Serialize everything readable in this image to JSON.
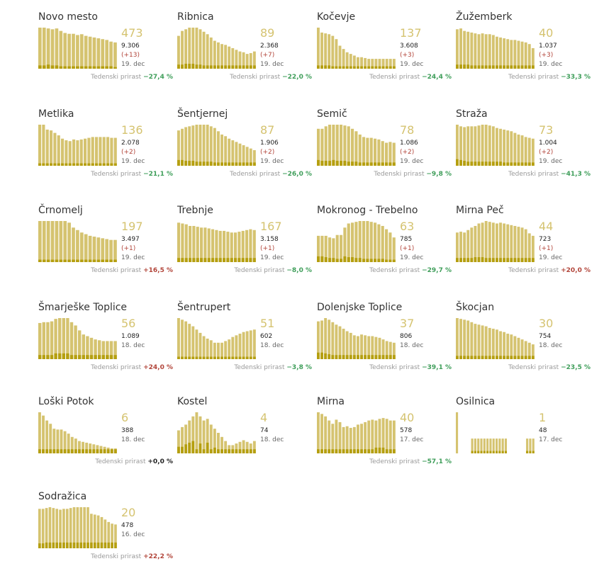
{
  "colors": {
    "bar_active": "#d5c370",
    "bar_new": "#b59f10",
    "number": "#d5c370",
    "growth_negative": "#3f9e5a",
    "growth_positive": "#b2453a"
  },
  "weekly_label": "Tedenski prirast",
  "chart_data": [
    {
      "type": "bar",
      "name": "Novo mesto",
      "active": 473,
      "total": "9.306",
      "new": "(+13)",
      "date": "19. dec",
      "weekly_growth": "−27,4 %",
      "trend": "neg",
      "values": [
        100,
        100,
        98,
        96,
        98,
        92,
        87,
        85,
        85,
        82,
        84,
        80,
        78,
        76,
        74,
        72,
        70,
        66,
        64
      ],
      "new_values": [
        8,
        8,
        10,
        8,
        8,
        6,
        6,
        6,
        6,
        6,
        6,
        6,
        6,
        6,
        6,
        6,
        6,
        6,
        4
      ]
    },
    {
      "type": "bar",
      "name": "Ribnica",
      "active": 89,
      "total": "2.368",
      "new": "(+7)",
      "date": "19. dec",
      "weekly_growth": "−22,0 %",
      "trend": "neg",
      "values": [
        80,
        92,
        96,
        100,
        100,
        100,
        96,
        90,
        84,
        76,
        68,
        64,
        60,
        58,
        54,
        50,
        46,
        42,
        40,
        36,
        38,
        42
      ],
      "new_values": [
        10,
        10,
        12,
        12,
        12,
        10,
        10,
        8,
        8,
        8,
        8,
        8,
        8,
        8,
        8,
        8,
        8,
        8,
        8,
        8,
        8,
        8
      ]
    },
    {
      "type": "bar",
      "name": "Kočevje",
      "active": 137,
      "total": "3.608",
      "new": "(+3)",
      "date": "19. dec",
      "weekly_growth": "−24,4 %",
      "trend": "neg",
      "values": [
        100,
        88,
        86,
        84,
        80,
        72,
        56,
        48,
        40,
        36,
        32,
        28,
        28,
        26,
        24,
        24,
        24,
        24,
        24,
        24,
        24,
        24
      ],
      "new_values": [
        8,
        8,
        8,
        8,
        6,
        6,
        6,
        6,
        6,
        6,
        6,
        6,
        6,
        6,
        6,
        6,
        6,
        6,
        6,
        6,
        6,
        6
      ]
    },
    {
      "type": "bar",
      "name": "Žužemberk",
      "active": 40,
      "total": "1.037",
      "new": "(+3)",
      "date": "19. dec",
      "weekly_growth": "−33,3 %",
      "trend": "neg",
      "values": [
        96,
        98,
        92,
        90,
        88,
        86,
        84,
        86,
        84,
        84,
        82,
        78,
        76,
        74,
        72,
        70,
        70,
        68,
        66,
        64,
        60,
        50
      ],
      "new_values": [
        10,
        10,
        10,
        10,
        8,
        8,
        8,
        8,
        8,
        8,
        8,
        8,
        8,
        8,
        8,
        8,
        8,
        8,
        8,
        8,
        8,
        8
      ]
    },
    {
      "type": "bar",
      "name": "Metlika",
      "active": 136,
      "total": "2.078",
      "new": "(+2)",
      "date": "19. dec",
      "weekly_growth": "−21,1 %",
      "trend": "neg",
      "values": [
        100,
        100,
        88,
        86,
        80,
        74,
        66,
        62,
        60,
        64,
        62,
        64,
        66,
        68,
        70,
        70,
        70,
        70,
        70,
        68,
        68
      ],
      "new_values": [
        6,
        6,
        6,
        6,
        6,
        6,
        6,
        6,
        6,
        6,
        6,
        6,
        6,
        6,
        6,
        6,
        6,
        6,
        6,
        6,
        6
      ]
    },
    {
      "type": "bar",
      "name": "Šentjernej",
      "active": 87,
      "total": "1.906",
      "new": "(+2)",
      "date": "19. dec",
      "weekly_growth": "−26,0 %",
      "trend": "neg",
      "values": [
        86,
        90,
        94,
        96,
        98,
        100,
        100,
        100,
        100,
        96,
        92,
        84,
        76,
        72,
        66,
        62,
        58,
        54,
        50,
        46,
        42,
        38
      ],
      "new_values": [
        14,
        14,
        12,
        12,
        12,
        10,
        10,
        10,
        10,
        10,
        8,
        8,
        8,
        8,
        8,
        8,
        8,
        8,
        8,
        8,
        8,
        8
      ]
    },
    {
      "type": "bar",
      "name": "Semič",
      "active": 78,
      "total": "1.086",
      "new": "(+2)",
      "date": "19. dec",
      "weekly_growth": "−9,8 %",
      "trend": "neg",
      "values": [
        90,
        90,
        96,
        100,
        100,
        100,
        100,
        98,
        96,
        90,
        84,
        76,
        70,
        68,
        68,
        66,
        64,
        60,
        56,
        58,
        56
      ],
      "new_values": [
        14,
        12,
        12,
        12,
        14,
        12,
        12,
        12,
        10,
        10,
        10,
        8,
        8,
        8,
        8,
        8,
        8,
        8,
        8,
        8,
        8
      ]
    },
    {
      "type": "bar",
      "name": "Straža",
      "active": 73,
      "total": "1.004",
      "new": "(+2)",
      "date": "19. dec",
      "weekly_growth": "−41,3 %",
      "trend": "neg",
      "values": [
        100,
        96,
        94,
        96,
        96,
        96,
        98,
        100,
        100,
        98,
        96,
        92,
        90,
        88,
        86,
        84,
        80,
        76,
        74,
        70,
        68,
        66
      ],
      "new_values": [
        16,
        14,
        12,
        10,
        10,
        10,
        10,
        10,
        10,
        10,
        10,
        10,
        10,
        8,
        8,
        8,
        8,
        8,
        8,
        8,
        8,
        8
      ]
    },
    {
      "type": "bar",
      "name": "Črnomelj",
      "active": 197,
      "total": "3.497",
      "new": "(+1)",
      "date": "19. dec",
      "weekly_growth": "+16,5 %",
      "trend": "pos",
      "values": [
        100,
        100,
        100,
        100,
        100,
        100,
        100,
        96,
        84,
        78,
        72,
        68,
        64,
        62,
        60,
        58,
        56,
        54,
        54
      ],
      "new_values": [
        6,
        6,
        6,
        6,
        6,
        6,
        6,
        6,
        6,
        6,
        6,
        6,
        6,
        6,
        6,
        6,
        6,
        6,
        6
      ]
    },
    {
      "type": "bar",
      "name": "Trebnje",
      "active": 167,
      "total": "3.158",
      "new": "(+1)",
      "date": "19. dec",
      "weekly_growth": "−8,0 %",
      "trend": "neg",
      "values": [
        96,
        94,
        92,
        88,
        88,
        86,
        84,
        84,
        82,
        80,
        78,
        76,
        76,
        74,
        72,
        72,
        74,
        76,
        78,
        80,
        78
      ],
      "new_values": [
        10,
        10,
        10,
        10,
        10,
        10,
        10,
        10,
        10,
        10,
        10,
        10,
        10,
        10,
        10,
        10,
        10,
        10,
        10,
        10,
        10
      ]
    },
    {
      "type": "bar",
      "name": "Mokronog - Trebelno",
      "active": 63,
      "total": "785",
      "new": "(+1)",
      "date": "19. dec",
      "weekly_growth": "−29,7 %",
      "trend": "neg",
      "values": [
        64,
        64,
        64,
        60,
        58,
        66,
        66,
        84,
        94,
        96,
        98,
        100,
        100,
        100,
        98,
        96,
        92,
        88,
        80,
        72,
        60
      ],
      "new_values": [
        14,
        14,
        12,
        10,
        10,
        8,
        8,
        14,
        12,
        12,
        10,
        10,
        8,
        8,
        8,
        8,
        8,
        8,
        6,
        6,
        6
      ]
    },
    {
      "type": "bar",
      "name": "Mirna Peč",
      "active": 44,
      "total": "723",
      "new": "(+1)",
      "date": "19. dec",
      "weekly_growth": "+20,0 %",
      "trend": "pos",
      "values": [
        72,
        74,
        72,
        78,
        84,
        88,
        94,
        96,
        100,
        98,
        96,
        94,
        96,
        94,
        92,
        90,
        88,
        86,
        84,
        80,
        70,
        64
      ],
      "new_values": [
        10,
        10,
        10,
        10,
        10,
        12,
        12,
        12,
        10,
        10,
        10,
        10,
        10,
        10,
        10,
        10,
        10,
        10,
        10,
        10,
        10,
        10
      ]
    },
    {
      "type": "bar",
      "name": "Šmarješke Toplice",
      "active": 56,
      "total": "1.089",
      "new": "",
      "date": "18. dec",
      "weekly_growth": "+24,0 %",
      "trend": "pos",
      "values": [
        88,
        90,
        90,
        92,
        98,
        100,
        100,
        100,
        90,
        82,
        70,
        60,
        56,
        52,
        48,
        46,
        44,
        44,
        44,
        44
      ],
      "new_values": [
        10,
        10,
        10,
        10,
        14,
        14,
        14,
        14,
        10,
        10,
        10,
        10,
        10,
        10,
        10,
        10,
        10,
        10,
        10,
        10
      ]
    },
    {
      "type": "bar",
      "name": "Šentrupert",
      "active": 51,
      "total": "602",
      "new": "",
      "date": "18. dec",
      "weekly_growth": "−3,8 %",
      "trend": "neg",
      "values": [
        100,
        96,
        92,
        86,
        80,
        72,
        64,
        56,
        50,
        46,
        40,
        40,
        40,
        44,
        48,
        54,
        58,
        62,
        66,
        68,
        70,
        72
      ],
      "new_values": [
        6,
        6,
        6,
        6,
        6,
        6,
        6,
        6,
        6,
        6,
        6,
        6,
        6,
        6,
        6,
        6,
        6,
        6,
        6,
        6,
        6,
        6
      ]
    },
    {
      "type": "bar",
      "name": "Dolenjske Toplice",
      "active": 37,
      "total": "806",
      "new": "",
      "date": "18. dec",
      "weekly_growth": "−39,1 %",
      "trend": "neg",
      "values": [
        92,
        94,
        100,
        96,
        90,
        84,
        80,
        74,
        68,
        64,
        58,
        56,
        60,
        58,
        56,
        56,
        54,
        52,
        48,
        44,
        42,
        40
      ],
      "new_values": [
        16,
        16,
        14,
        12,
        10,
        10,
        10,
        10,
        10,
        10,
        10,
        10,
        10,
        10,
        10,
        10,
        10,
        10,
        10,
        10,
        10,
        10
      ]
    },
    {
      "type": "bar",
      "name": "Škocjan",
      "active": 30,
      "total": "754",
      "new": "",
      "date": "18. dec",
      "weekly_growth": "−23,5 %",
      "trend": "neg",
      "values": [
        100,
        98,
        96,
        94,
        90,
        86,
        84,
        82,
        80,
        76,
        74,
        72,
        68,
        66,
        62,
        60,
        56,
        52,
        48,
        44,
        40,
        36
      ],
      "new_values": [
        8,
        8,
        8,
        8,
        8,
        8,
        8,
        8,
        8,
        8,
        8,
        8,
        8,
        8,
        8,
        8,
        8,
        8,
        8,
        8,
        8,
        8
      ]
    },
    {
      "type": "bar",
      "name": "Loški Potok",
      "active": 6,
      "total": "388",
      "new": "",
      "date": "18. dec",
      "weekly_growth": "+0,0 %",
      "trend": "zero",
      "values": [
        100,
        92,
        80,
        72,
        60,
        58,
        58,
        54,
        48,
        40,
        36,
        30,
        28,
        26,
        24,
        22,
        20,
        18,
        16,
        14,
        12,
        12
      ],
      "new_values": [
        10,
        10,
        10,
        10,
        10,
        10,
        10,
        10,
        10,
        10,
        10,
        10,
        10,
        10,
        10,
        10,
        10,
        10,
        10,
        10,
        10,
        10
      ]
    },
    {
      "type": "bar",
      "name": "Kostel",
      "active": 4,
      "total": "74",
      "new": "",
      "date": "18. dec",
      "weekly_growth": "",
      "trend": "none",
      "values": [
        56,
        64,
        70,
        80,
        90,
        100,
        90,
        80,
        84,
        70,
        60,
        50,
        40,
        30,
        20,
        20,
        24,
        28,
        32,
        28,
        24,
        30
      ],
      "new_values": [
        16,
        16,
        22,
        26,
        30,
        10,
        24,
        10,
        26,
        10,
        14,
        10,
        10,
        10,
        10,
        10,
        10,
        10,
        10,
        10,
        10,
        10
      ]
    },
    {
      "type": "bar",
      "name": "Mirna",
      "active": 40,
      "total": "578",
      "new": "",
      "date": "17. dec",
      "weekly_growth": "−57,1 %",
      "trend": "neg",
      "values": [
        100,
        96,
        90,
        80,
        72,
        82,
        76,
        64,
        66,
        62,
        64,
        70,
        72,
        76,
        80,
        82,
        80,
        84,
        86,
        84,
        80,
        80
      ],
      "new_values": [
        10,
        10,
        10,
        10,
        10,
        10,
        10,
        10,
        10,
        10,
        10,
        10,
        10,
        10,
        10,
        10,
        14,
        14,
        14,
        10,
        10,
        10
      ]
    },
    {
      "type": "bar",
      "name": "Osilnica",
      "active": 1,
      "total": "48",
      "new": "",
      "date": "17. dec",
      "weekly_growth": "",
      "trend": "none",
      "values": [
        100,
        0,
        0,
        0,
        0,
        36,
        36,
        36,
        36,
        36,
        36,
        36,
        36,
        36,
        36,
        36,
        36,
        0,
        0,
        0,
        0,
        0,
        0,
        36,
        36,
        36
      ],
      "new_values": [
        0,
        0,
        0,
        0,
        0,
        6,
        6,
        6,
        6,
        6,
        6,
        6,
        6,
        6,
        6,
        6,
        6,
        0,
        0,
        0,
        0,
        0,
        0,
        6,
        6,
        6
      ]
    },
    {
      "type": "bar",
      "name": "Sodražica",
      "active": 20,
      "total": "478",
      "new": "",
      "date": "16. dec",
      "weekly_growth": "+22,2 %",
      "trend": "pos",
      "values": [
        96,
        96,
        98,
        100,
        98,
        96,
        94,
        96,
        96,
        98,
        100,
        100,
        100,
        100,
        100,
        84,
        82,
        80,
        76,
        70,
        64,
        60,
        58
      ],
      "new_values": [
        12,
        12,
        14,
        14,
        14,
        14,
        14,
        14,
        14,
        14,
        14,
        14,
        14,
        14,
        14,
        14,
        14,
        14,
        14,
        14,
        14,
        14,
        14
      ]
    }
  ]
}
